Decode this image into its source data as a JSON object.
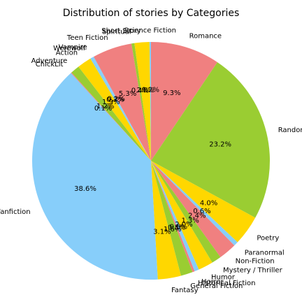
{
  "chart_data": {
    "type": "pie",
    "title": "Distribution of stories by Categories",
    "start_angle_deg": 90,
    "direction": "clockwise",
    "slices": [
      {
        "label": "Romance",
        "value": 9.3,
        "pct_label": "9.3%",
        "color": "#f08080"
      },
      {
        "label": "Random",
        "value": 23.2,
        "pct_label": "23.2%",
        "color": "#9acd32"
      },
      {
        "label": "Poetry",
        "value": 4.0,
        "pct_label": "4.0%",
        "color": "#ffd700"
      },
      {
        "label": "Paranormal",
        "value": 0.6,
        "pct_label": "0.6%",
        "color": "#87cefa"
      },
      {
        "label": "Non-Fiction",
        "value": 2.4,
        "pct_label": "2.4%",
        "color": "#f08080"
      },
      {
        "label": "Mystery / Thriller",
        "value": 1.3,
        "pct_label": "1.3%",
        "color": "#9acd32"
      },
      {
        "label": "Humor",
        "value": 2.0,
        "pct_label": "2.0%",
        "color": "#ffd700"
      },
      {
        "label": "Horror",
        "value": 0.6,
        "pct_label": "0.6%",
        "color": "#87cefa"
      },
      {
        "label": "Historical Fiction",
        "value": 0.3,
        "pct_label": "0.3%",
        "color": "#f08080"
      },
      {
        "label": "General Fiction",
        "value": 1.6,
        "pct_label": "1.6%",
        "color": "#9acd32"
      },
      {
        "label": "Fantasy",
        "value": 3.1,
        "pct_label": "3.1%",
        "color": "#ffd700"
      },
      {
        "label": "Fanfiction",
        "value": 38.6,
        "pct_label": "38.6%",
        "color": "#87cefa"
      },
      {
        "label": "ChickLit",
        "value": 0.1,
        "pct_label": "0.1%",
        "color": "#f08080"
      },
      {
        "label": "Adventure",
        "value": 1.2,
        "pct_label": "1.2%",
        "color": "#9acd32"
      },
      {
        "label": "Action",
        "value": 1.9,
        "pct_label": "1.9%",
        "color": "#ffd700"
      },
      {
        "label": "Werewolf",
        "value": 0.3,
        "pct_label": "0.3%",
        "color": "#87cefa"
      },
      {
        "label": "Vampire",
        "value": 0.2,
        "pct_label": "0.2%",
        "color": "#87cefa"
      },
      {
        "label": "Teen Fiction",
        "value": 5.3,
        "pct_label": "5.3%",
        "color": "#f08080"
      },
      {
        "label": "Spiritual",
        "value": 0.4,
        "pct_label": "0.4%",
        "color": "#9acd32"
      },
      {
        "label": "Short Story",
        "value": 2.0,
        "pct_label": "2.0%",
        "color": "#ffd700"
      },
      {
        "label": "Science Fiction",
        "value": 0.2,
        "pct_label": "0.2%",
        "color": "#87cefa"
      }
    ]
  }
}
